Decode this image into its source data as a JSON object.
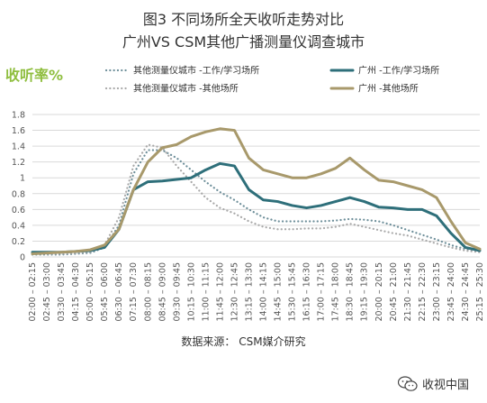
{
  "title_line1": "图3  不同场所全天收听走势对比",
  "title_line2": "广州VS  CSM其他广播测量仪调查城市",
  "source": "数据来源：  CSM媒介研究",
  "watermark": "收视中国",
  "watermark_icon": "wechat-icon",
  "colors": {
    "other_work": "#6e8f9a",
    "other_else": "#a9a9a9",
    "gz_work": "#2e6f7a",
    "gz_else": "#a8996b",
    "grid": "#d9d9d9",
    "ylabel": "#8fbe3f"
  },
  "chart_data": {
    "type": "line",
    "ylabel": "收听率%",
    "ylim": [
      0,
      1.8
    ],
    "yticks": [
      0,
      0.2,
      0.4,
      0.6,
      0.8,
      1,
      1.2,
      1.4,
      1.6,
      1.8
    ],
    "grid": true,
    "legend_position": "top",
    "categories": [
      "02:00 – 02:15",
      "02:45 – 03:00",
      "03:30 – 03:45",
      "04:15 – 04:30",
      "05:00 – 05:15",
      "05:45 – 06:00",
      "06:30 – 06:45",
      "07:15 – 07:30",
      "08:00 – 08:15",
      "08:45 – 09:00",
      "09:30 – 09:45",
      "10:15 – 10:30",
      "11:00 – 11:15",
      "11:45 – 12:00",
      "12:30 – 12:45",
      "13:15 – 13:30",
      "14:00 – 14:15",
      "14:45 – 15:00",
      "15:30 – 15:45",
      "16:15 – 16:30",
      "17:00 – 17:15",
      "17:45 – 18:00",
      "18:30 – 18:45",
      "19:15 – 19:30",
      "20:00 – 20:15",
      "20:45 – 21:00",
      "21:30 – 21:45",
      "22:15 – 22:30",
      "23:00 – 23:15",
      "23:45 – 24:00",
      "24:30 – 24:45",
      "25:15 – 25:30"
    ],
    "series": [
      {
        "name": "其他测量仪城市 -工作/学习场所",
        "style": "dotted",
        "values": [
          0.03,
          0.03,
          0.03,
          0.04,
          0.05,
          0.12,
          0.4,
          1.05,
          1.35,
          1.35,
          1.25,
          1.1,
          0.95,
          0.82,
          0.72,
          0.6,
          0.5,
          0.45,
          0.45,
          0.45,
          0.45,
          0.46,
          0.48,
          0.47,
          0.45,
          0.4,
          0.34,
          0.28,
          0.22,
          0.15,
          0.1,
          0.08
        ]
      },
      {
        "name": "其他测量仪城市 -其他场所",
        "style": "dotted",
        "values": [
          0.04,
          0.04,
          0.04,
          0.05,
          0.06,
          0.15,
          0.5,
          1.15,
          1.42,
          1.38,
          1.15,
          0.95,
          0.75,
          0.62,
          0.55,
          0.45,
          0.38,
          0.35,
          0.35,
          0.36,
          0.36,
          0.38,
          0.42,
          0.38,
          0.34,
          0.3,
          0.27,
          0.22,
          0.17,
          0.12,
          0.08,
          0.06
        ]
      },
      {
        "name": "广州 -工作/学习场所",
        "style": "solid",
        "values": [
          0.06,
          0.06,
          0.06,
          0.07,
          0.08,
          0.12,
          0.35,
          0.85,
          0.95,
          0.96,
          0.98,
          1.0,
          1.1,
          1.18,
          1.15,
          0.85,
          0.72,
          0.7,
          0.65,
          0.62,
          0.65,
          0.7,
          0.75,
          0.7,
          0.63,
          0.62,
          0.6,
          0.6,
          0.52,
          0.3,
          0.12,
          0.08
        ]
      },
      {
        "name": "广州 -其他场所",
        "style": "solid",
        "values": [
          0.04,
          0.05,
          0.06,
          0.07,
          0.09,
          0.15,
          0.35,
          0.85,
          1.2,
          1.38,
          1.42,
          1.52,
          1.58,
          1.62,
          1.6,
          1.25,
          1.1,
          1.05,
          1.0,
          1.0,
          1.05,
          1.12,
          1.25,
          1.1,
          0.97,
          0.95,
          0.9,
          0.85,
          0.75,
          0.45,
          0.18,
          0.1
        ]
      }
    ]
  }
}
